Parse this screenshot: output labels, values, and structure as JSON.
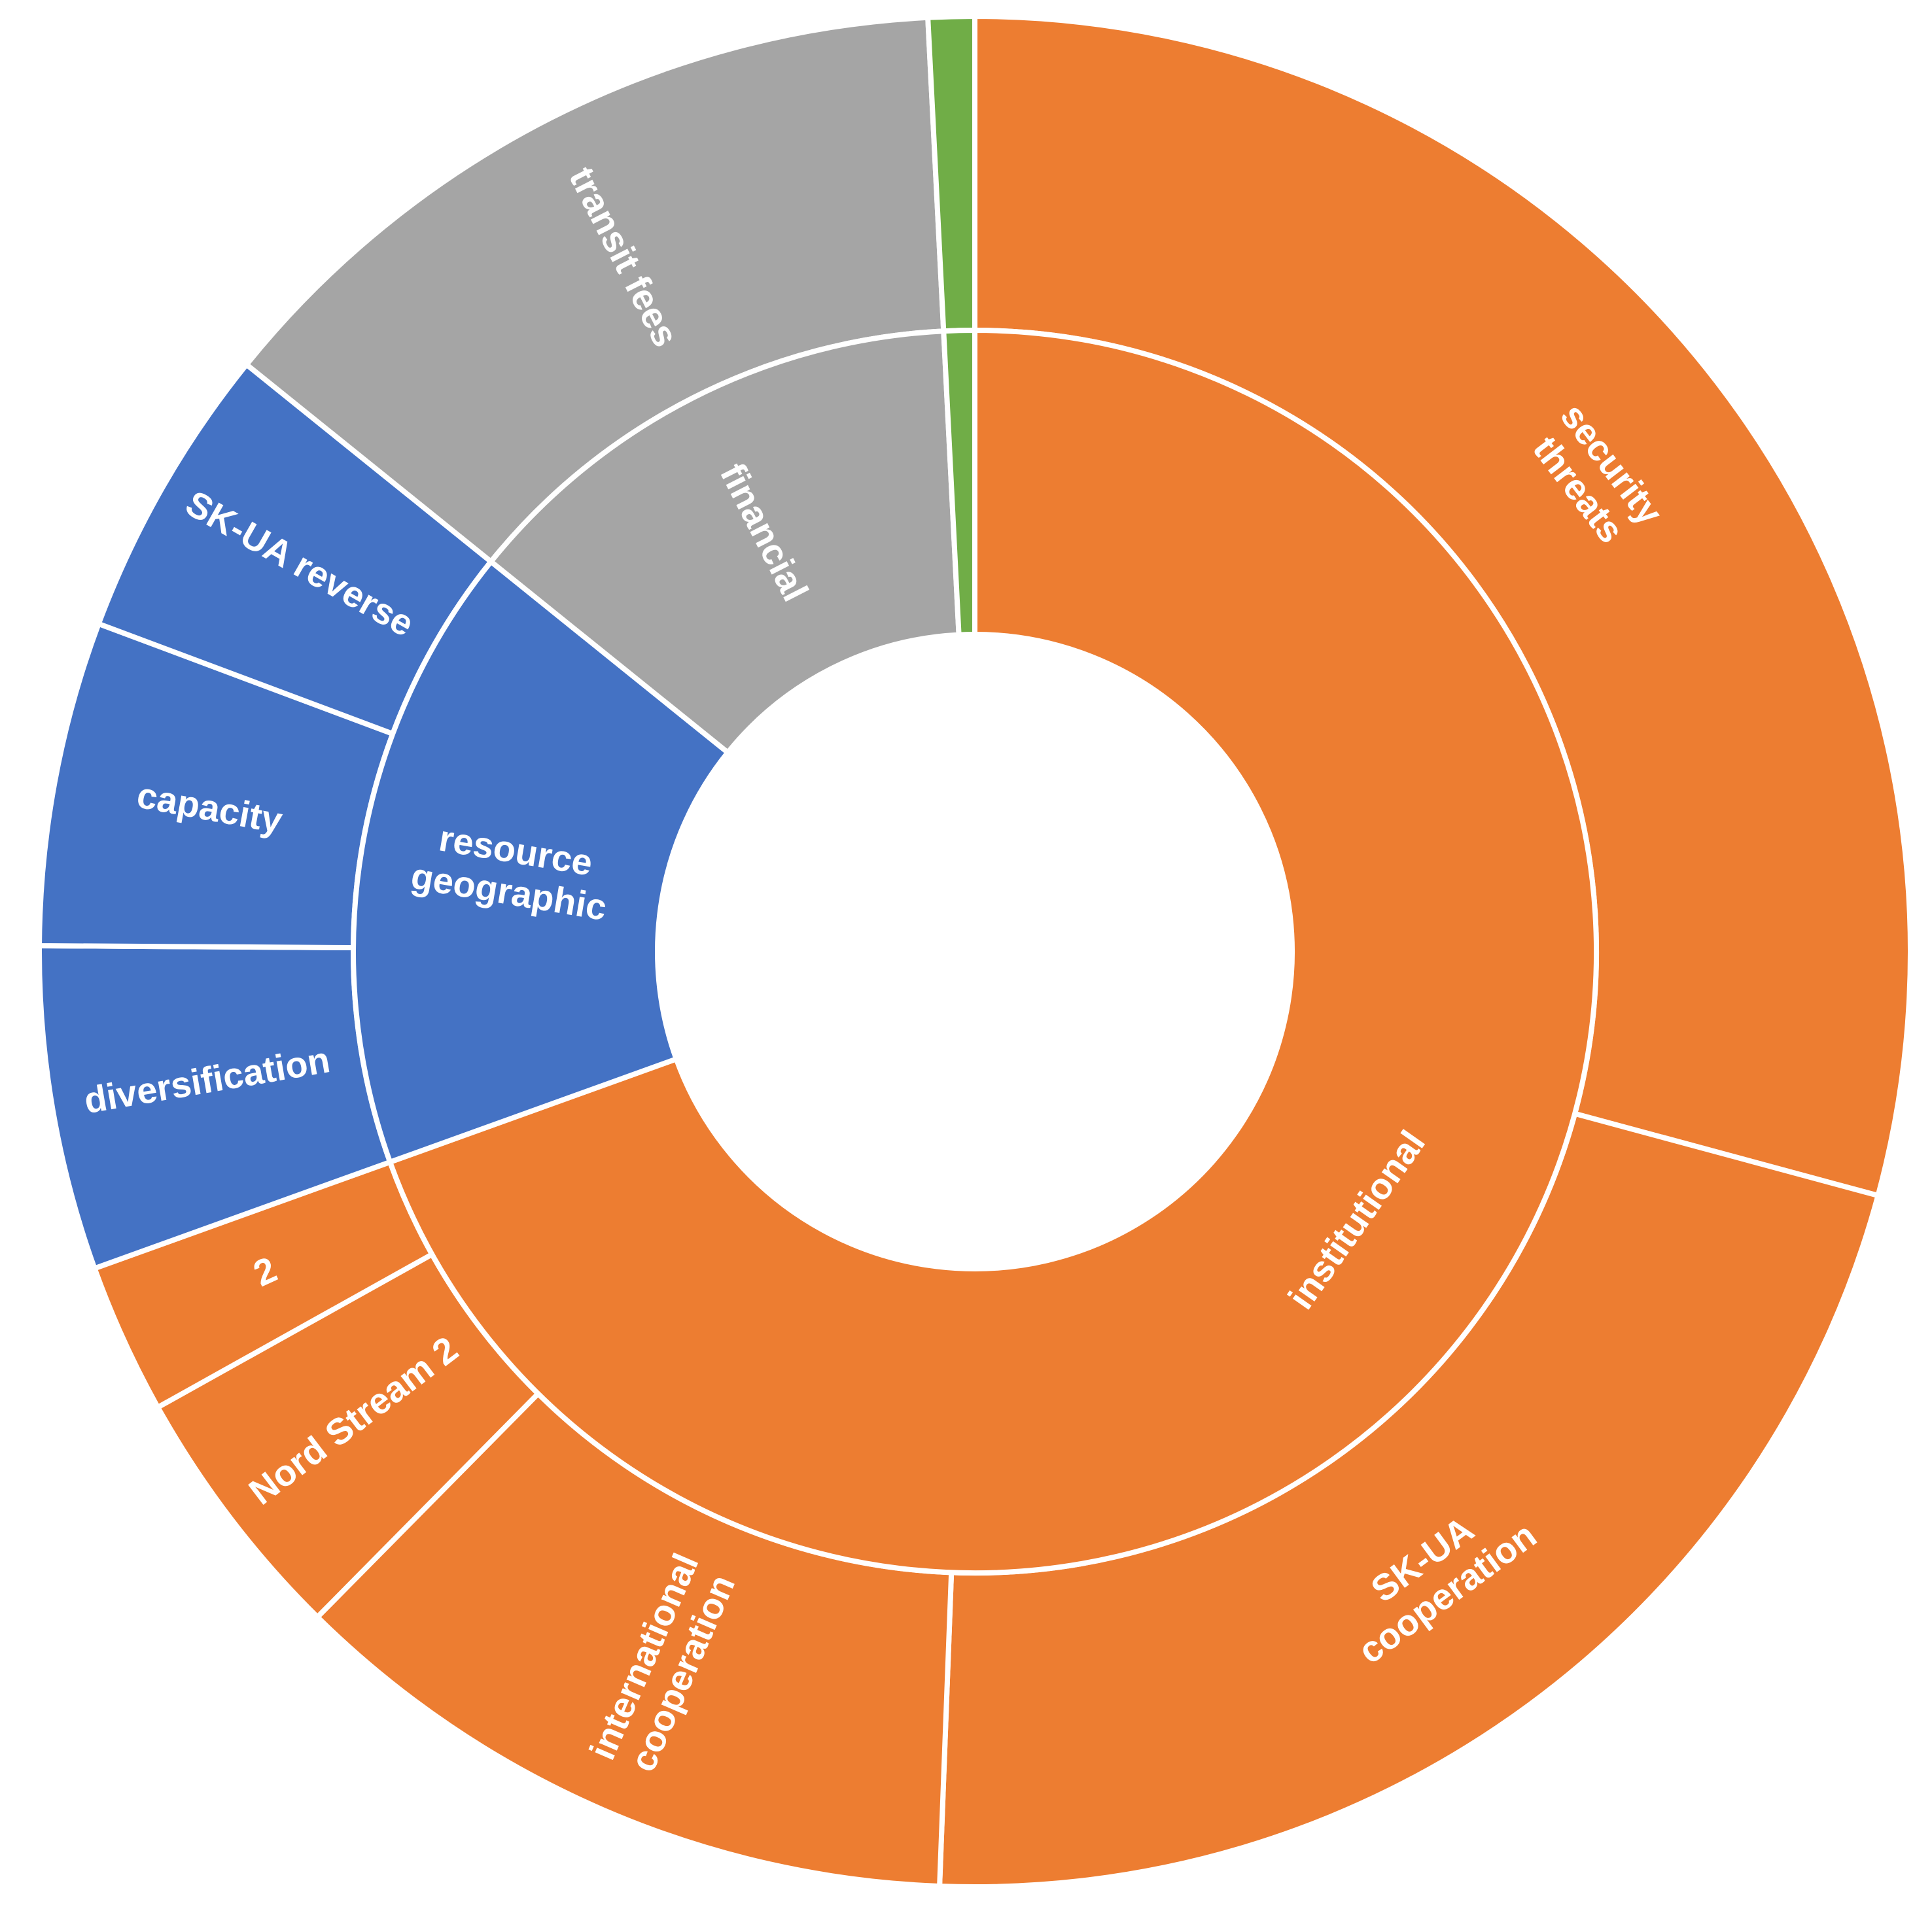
{
  "chart_data": {
    "type": "sunburst",
    "colors": {
      "institutional": "#ED7D31",
      "resource_geographic": "#4472C4",
      "financial": "#A5A5A5",
      "other": "#70AD47"
    },
    "inner_ring": [
      {
        "label": "institutional",
        "value": 69.5,
        "color": "#ED7D31"
      },
      {
        "label": "resource geographic",
        "value": 16.3,
        "color": "#4472C4"
      },
      {
        "label": "financial",
        "value": 13.4,
        "color": "#A5A5A5"
      },
      {
        "label": "",
        "value": 0.8,
        "color": "#70AD47"
      }
    ],
    "outer_ring": [
      {
        "label": "security threats",
        "value": 29.2,
        "color": "#ED7D31",
        "parent": "institutional"
      },
      {
        "label": "SK-UA cooperation",
        "value": 21.4,
        "color": "#ED7D31",
        "parent": "institutional"
      },
      {
        "label": "international cooperation",
        "value": 11.8,
        "color": "#ED7D31",
        "parent": "institutional"
      },
      {
        "label": "Nord Stream 2",
        "value": 4.5,
        "color": "#ED7D31",
        "parent": "institutional"
      },
      {
        "label": "2",
        "value": 2.6,
        "color": "#ED7D31",
        "parent": "institutional"
      },
      {
        "label": "diversification",
        "value": 5.6,
        "color": "#4472C4",
        "parent": "resource geographic"
      },
      {
        "label": "capacity",
        "value": 5.6,
        "color": "#4472C4",
        "parent": "resource geographic"
      },
      {
        "label": "SK-UA reverse",
        "value": 5.1,
        "color": "#4472C4",
        "parent": "resource geographic"
      },
      {
        "label": "transit fees",
        "value": 13.4,
        "color": "#A5A5A5",
        "parent": "financial"
      },
      {
        "label": "",
        "value": 0.8,
        "color": "#70AD47",
        "parent": ""
      }
    ]
  }
}
